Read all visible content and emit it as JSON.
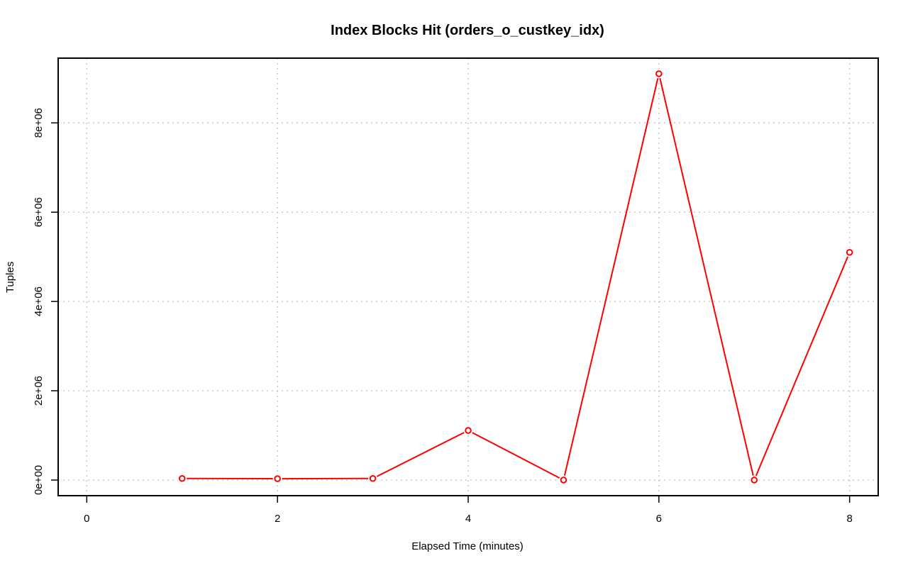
{
  "chart_data": {
    "type": "line",
    "title": "Index Blocks Hit (orders_o_custkey_idx)",
    "xlabel": "Elapsed Time (minutes)",
    "ylabel": "Tuples",
    "xlim": [
      -0.3,
      8.3
    ],
    "ylim": [
      -350000,
      9450000
    ],
    "x_ticks": [
      0,
      2,
      4,
      6,
      8
    ],
    "x_tick_labels": [
      "0",
      "2",
      "4",
      "6",
      "8"
    ],
    "y_ticks": [
      0,
      2000000,
      4000000,
      6000000,
      8000000
    ],
    "y_tick_labels": [
      "0e+00",
      "2e+06",
      "4e+06",
      "6e+06",
      "8e+06"
    ],
    "grid": true,
    "series": [
      {
        "color": "#ff0000",
        "marker": "open-circle",
        "x": [
          1,
          2,
          3,
          4,
          5,
          6,
          7,
          8
        ],
        "y": [
          35000,
          30000,
          35000,
          1110000,
          0,
          9100000,
          0,
          5100000
        ]
      }
    ]
  }
}
